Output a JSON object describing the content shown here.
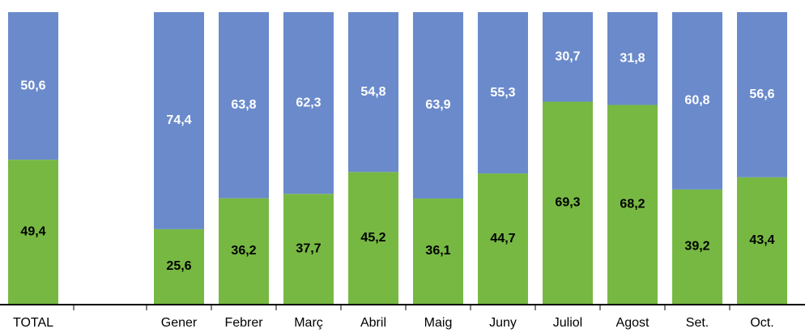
{
  "chart_data": {
    "type": "stacked_bar",
    "categories": [
      "TOTAL",
      null,
      "Gener",
      "Febrer",
      "Març",
      "Abril",
      "Maig",
      "Juny",
      "Juliol",
      "Agost",
      "Set.",
      "Oct."
    ],
    "ylim": [
      0,
      100
    ],
    "series": [
      {
        "color": "#77b843",
        "label_color": "#000000",
        "values": [
          49.4,
          null,
          25.6,
          36.2,
          37.7,
          45.2,
          36.1,
          44.7,
          69.3,
          68.2,
          39.2,
          43.4
        ],
        "value_labels": [
          "49,4",
          null,
          "25,6",
          "36,2",
          "37,7",
          "45,2",
          "36,1",
          "44,7",
          "69,3",
          "68,2",
          "39,2",
          "43,4"
        ]
      },
      {
        "color": "#6a8acb",
        "label_color": "#ffffff",
        "values": [
          50.6,
          null,
          74.4,
          63.8,
          62.3,
          54.8,
          63.9,
          55.3,
          30.7,
          31.8,
          60.8,
          56.6
        ],
        "value_labels": [
          "50,6",
          null,
          "74,4",
          "63,8",
          "62,3",
          "54,8",
          "63,9",
          "55,3",
          "30,7",
          "31,8",
          "60,8",
          "56,6"
        ]
      }
    ]
  }
}
